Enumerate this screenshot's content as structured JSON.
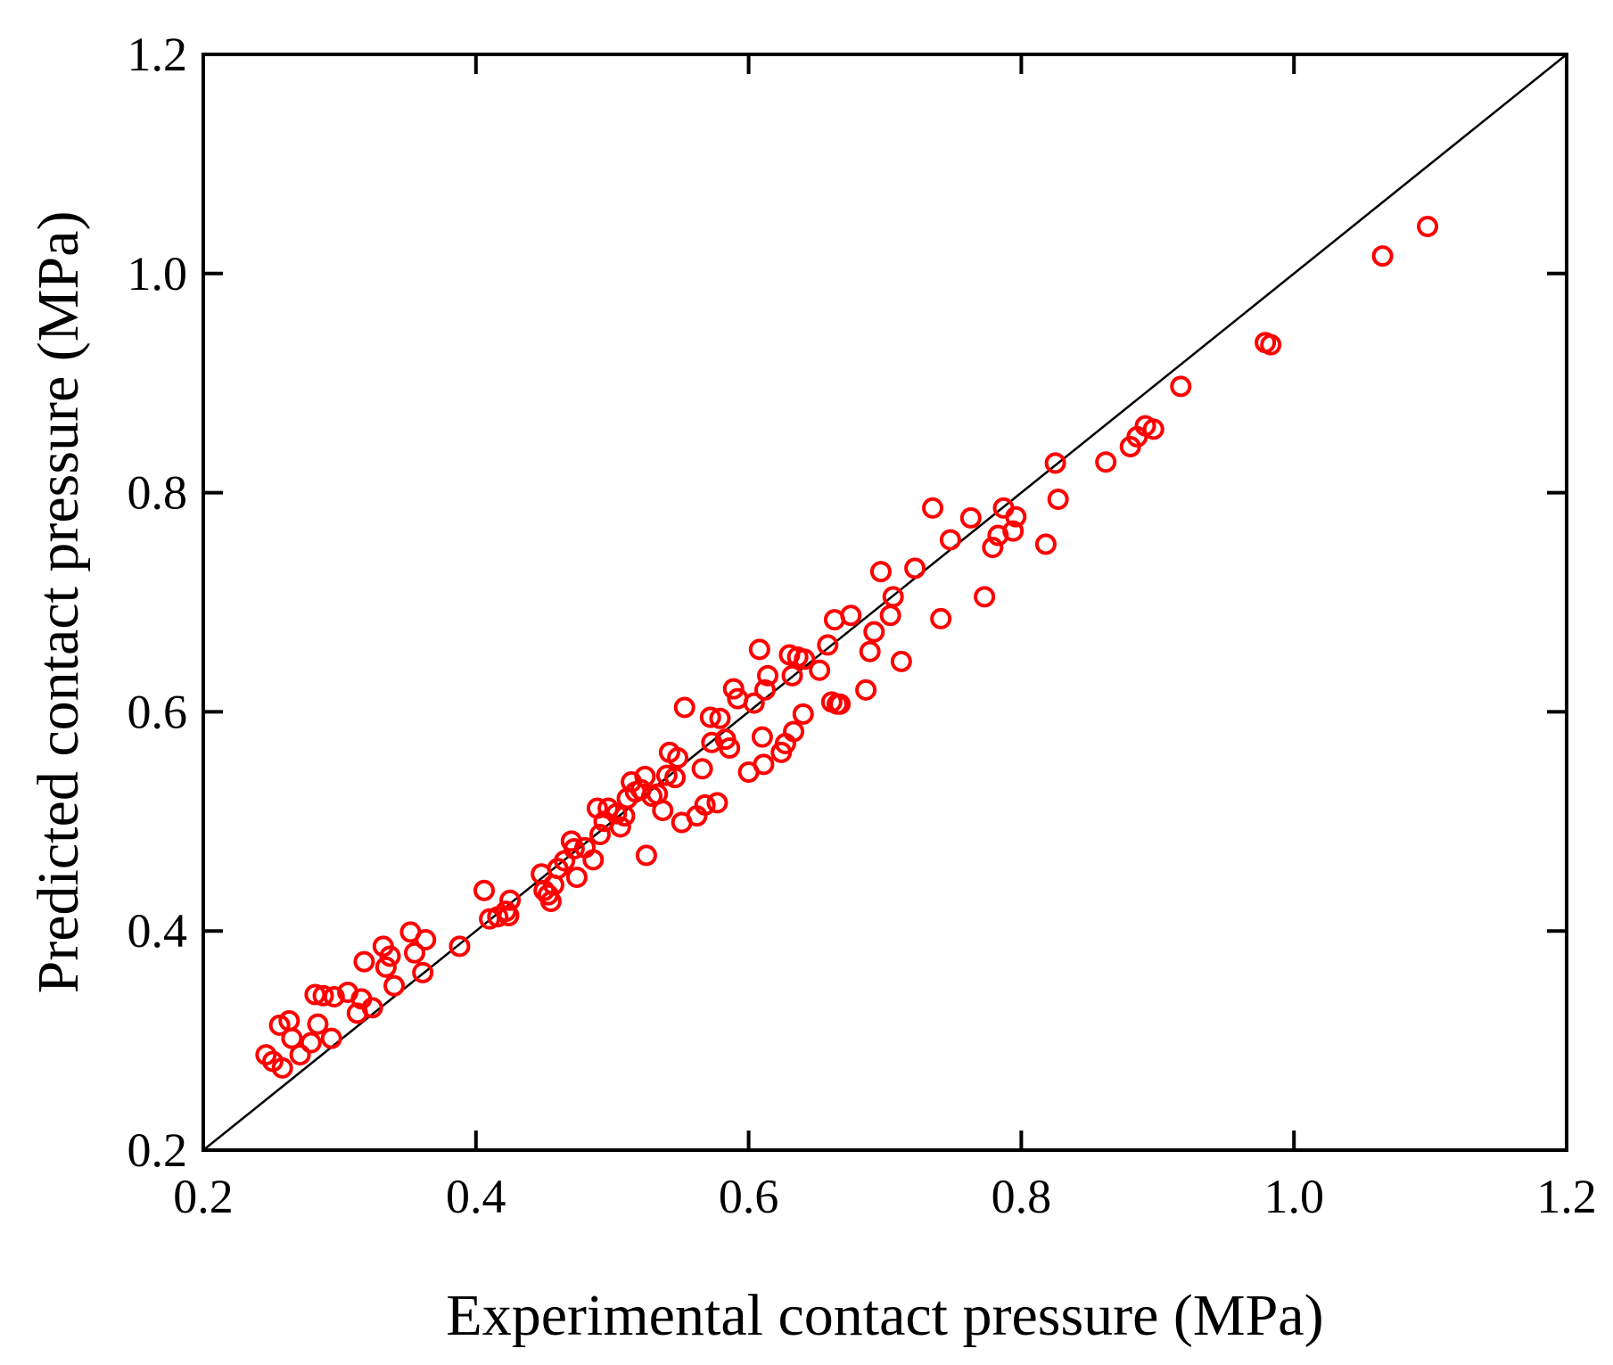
{
  "colors": {
    "marker": "#ff0000",
    "axis": "#000000",
    "background": "#ffffff"
  },
  "chart_data": {
    "type": "scatter",
    "title": "",
    "xlabel": "Experimental contact pressure (MPa)",
    "ylabel": "Predicted contact pressure (MPa)",
    "xlim": [
      0.2,
      1.2
    ],
    "ylim": [
      0.2,
      1.2
    ],
    "xticks": [
      "0.2",
      "0.4",
      "0.6",
      "0.8",
      "1.0",
      "1.2"
    ],
    "yticks": [
      "0.2",
      "0.4",
      "0.6",
      "0.8",
      "1.0",
      "1.2"
    ],
    "grid": false,
    "reference_line": {
      "name": "y = x",
      "x": [
        0.2,
        1.2
      ],
      "y": [
        0.2,
        1.2
      ]
    },
    "series": [
      {
        "name": "Predicted vs experimental",
        "marker": "open-circle",
        "points": [
          [
            0.246,
            0.287
          ],
          [
            0.251,
            0.281
          ],
          [
            0.256,
            0.314
          ],
          [
            0.258,
            0.275
          ],
          [
            0.263,
            0.318
          ],
          [
            0.265,
            0.302
          ],
          [
            0.271,
            0.287
          ],
          [
            0.279,
            0.298
          ],
          [
            0.282,
            0.342
          ],
          [
            0.284,
            0.315
          ],
          [
            0.288,
            0.341
          ],
          [
            0.294,
            0.302
          ],
          [
            0.296,
            0.34
          ],
          [
            0.306,
            0.344
          ],
          [
            0.313,
            0.325
          ],
          [
            0.316,
            0.338
          ],
          [
            0.318,
            0.372
          ],
          [
            0.324,
            0.33
          ],
          [
            0.332,
            0.386
          ],
          [
            0.334,
            0.367
          ],
          [
            0.337,
            0.377
          ],
          [
            0.34,
            0.35
          ],
          [
            0.352,
            0.399
          ],
          [
            0.355,
            0.38
          ],
          [
            0.361,
            0.362
          ],
          [
            0.363,
            0.392
          ],
          [
            0.388,
            0.386
          ],
          [
            0.406,
            0.437
          ],
          [
            0.41,
            0.411
          ],
          [
            0.416,
            0.413
          ],
          [
            0.422,
            0.418
          ],
          [
            0.424,
            0.414
          ],
          [
            0.425,
            0.428
          ],
          [
            0.448,
            0.452
          ],
          [
            0.45,
            0.437
          ],
          [
            0.453,
            0.433
          ],
          [
            0.455,
            0.427
          ],
          [
            0.457,
            0.442
          ],
          [
            0.46,
            0.457
          ],
          [
            0.465,
            0.464
          ],
          [
            0.47,
            0.482
          ],
          [
            0.472,
            0.475
          ],
          [
            0.474,
            0.449
          ],
          [
            0.48,
            0.476
          ],
          [
            0.486,
            0.465
          ],
          [
            0.489,
            0.512
          ],
          [
            0.491,
            0.488
          ],
          [
            0.494,
            0.5
          ],
          [
            0.497,
            0.512
          ],
          [
            0.503,
            0.507
          ],
          [
            0.506,
            0.495
          ],
          [
            0.509,
            0.505
          ],
          [
            0.511,
            0.521
          ],
          [
            0.514,
            0.536
          ],
          [
            0.517,
            0.527
          ],
          [
            0.521,
            0.529
          ],
          [
            0.524,
            0.541
          ],
          [
            0.525,
            0.469
          ],
          [
            0.529,
            0.523
          ],
          [
            0.533,
            0.525
          ],
          [
            0.537,
            0.51
          ],
          [
            0.54,
            0.542
          ],
          [
            0.542,
            0.563
          ],
          [
            0.546,
            0.54
          ],
          [
            0.548,
            0.558
          ],
          [
            0.551,
            0.499
          ],
          [
            0.553,
            0.604
          ],
          [
            0.562,
            0.505
          ],
          [
            0.566,
            0.548
          ],
          [
            0.568,
            0.515
          ],
          [
            0.572,
            0.595
          ],
          [
            0.573,
            0.572
          ],
          [
            0.577,
            0.517
          ],
          [
            0.579,
            0.594
          ],
          [
            0.583,
            0.575
          ],
          [
            0.586,
            0.567
          ],
          [
            0.589,
            0.621
          ],
          [
            0.592,
            0.612
          ],
          [
            0.6,
            0.545
          ],
          [
            0.604,
            0.608
          ],
          [
            0.608,
            0.657
          ],
          [
            0.61,
            0.577
          ],
          [
            0.611,
            0.552
          ],
          [
            0.612,
            0.62
          ],
          [
            0.614,
            0.633
          ],
          [
            0.624,
            0.563
          ],
          [
            0.627,
            0.571
          ],
          [
            0.63,
            0.652
          ],
          [
            0.632,
            0.633
          ],
          [
            0.633,
            0.582
          ],
          [
            0.636,
            0.65
          ],
          [
            0.64,
            0.598
          ],
          [
            0.641,
            0.648
          ],
          [
            0.652,
            0.638
          ],
          [
            0.658,
            0.661
          ],
          [
            0.661,
            0.609
          ],
          [
            0.663,
            0.684
          ],
          [
            0.665,
            0.607
          ],
          [
            0.667,
            0.607
          ],
          [
            0.675,
            0.688
          ],
          [
            0.686,
            0.62
          ],
          [
            0.689,
            0.655
          ],
          [
            0.692,
            0.673
          ],
          [
            0.697,
            0.728
          ],
          [
            0.704,
            0.688
          ],
          [
            0.706,
            0.705
          ],
          [
            0.712,
            0.646
          ],
          [
            0.722,
            0.731
          ],
          [
            0.735,
            0.786
          ],
          [
            0.741,
            0.685
          ],
          [
            0.748,
            0.757
          ],
          [
            0.763,
            0.777
          ],
          [
            0.773,
            0.705
          ],
          [
            0.779,
            0.75
          ],
          [
            0.783,
            0.761
          ],
          [
            0.787,
            0.786
          ],
          [
            0.794,
            0.765
          ],
          [
            0.796,
            0.778
          ],
          [
            0.818,
            0.753
          ],
          [
            0.825,
            0.827
          ],
          [
            0.827,
            0.794
          ],
          [
            0.862,
            0.828
          ],
          [
            0.88,
            0.842
          ],
          [
            0.885,
            0.851
          ],
          [
            0.891,
            0.861
          ],
          [
            0.897,
            0.858
          ],
          [
            0.917,
            0.897
          ],
          [
            0.979,
            0.937
          ],
          [
            0.983,
            0.935
          ],
          [
            1.065,
            1.016
          ],
          [
            1.098,
            1.043
          ]
        ]
      }
    ]
  }
}
